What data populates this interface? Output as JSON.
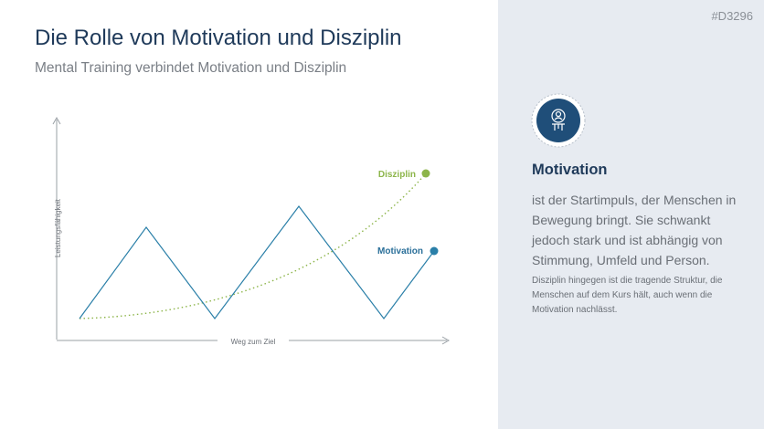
{
  "id": "#D3296",
  "title": "Die Rolle von Motivation und Disziplin",
  "subtitle": "Mental Training verbindet Motivation und Disziplin",
  "diagram": {
    "y_axis_label": "Leistungsfähigkeit",
    "x_axis_label": "Weg zum Ziel",
    "series": [
      {
        "label": "Disziplin"
      },
      {
        "label": "Motivation"
      }
    ]
  },
  "panel": {
    "heading": "Motivation",
    "text": "ist der Startimpuls, der Menschen in Bewegung bringt. Sie schwankt jedoch stark und ist abhängig von Stimmung, Umfeld und Person.",
    "note": "Disziplin hingegen ist die tragende Struktur, die Menschen auf dem Kurs hält, auch wenn die Motivation nachlässt."
  }
}
